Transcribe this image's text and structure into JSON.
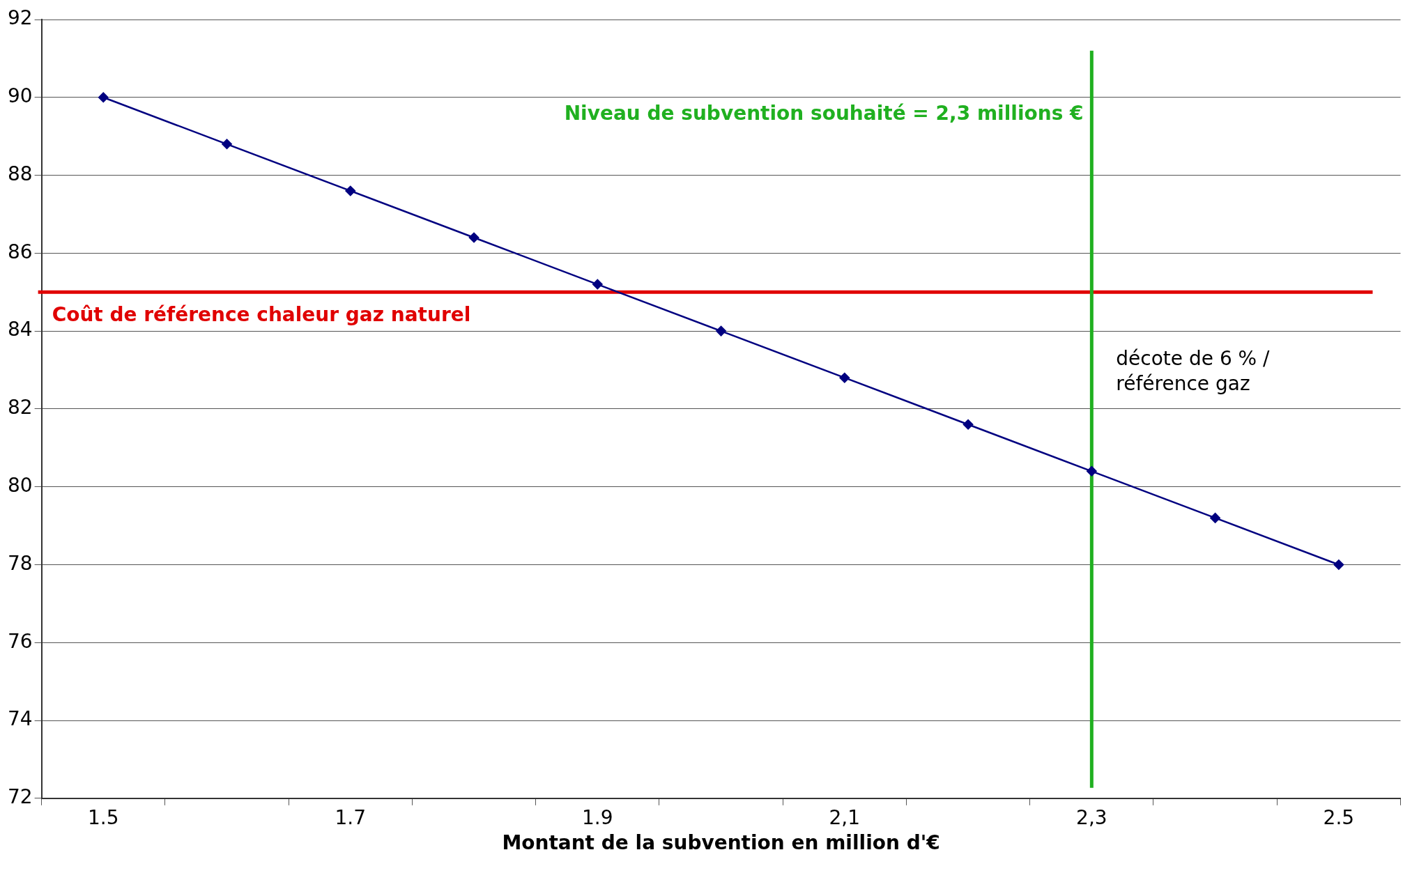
{
  "chart_data": {
    "type": "line",
    "xlabel": "Montant de la subvention en million d'€",
    "categories": [
      "1.5",
      null,
      "1.7",
      null,
      "1.9",
      null,
      "2,1",
      null,
      "2,3",
      null,
      "2.5"
    ],
    "series": [
      {
        "color": "#000080",
        "values": [
          90,
          88.8,
          87.6,
          86.4,
          85.2,
          84,
          82.8,
          81.6,
          80.4,
          79.2,
          78
        ]
      }
    ],
    "ylim": [
      72,
      92
    ],
    "yticks": [
      72,
      74,
      76,
      78,
      80,
      82,
      84,
      86,
      88,
      90,
      92
    ],
    "grid": "y",
    "legend": false,
    "marker": "diamond",
    "line_style": "solid",
    "ref_lines": [
      {
        "axis": "y",
        "value": 85,
        "label": "Coût de référence chaleur gaz naturel",
        "color": "#e00000"
      },
      {
        "axis": "x",
        "value": "2,3",
        "label": "Niveau de subvention souhaité = 2,3 millions €",
        "color": "#20b020"
      }
    ],
    "annotations": [
      "décote de 6 % / référence gaz"
    ]
  }
}
